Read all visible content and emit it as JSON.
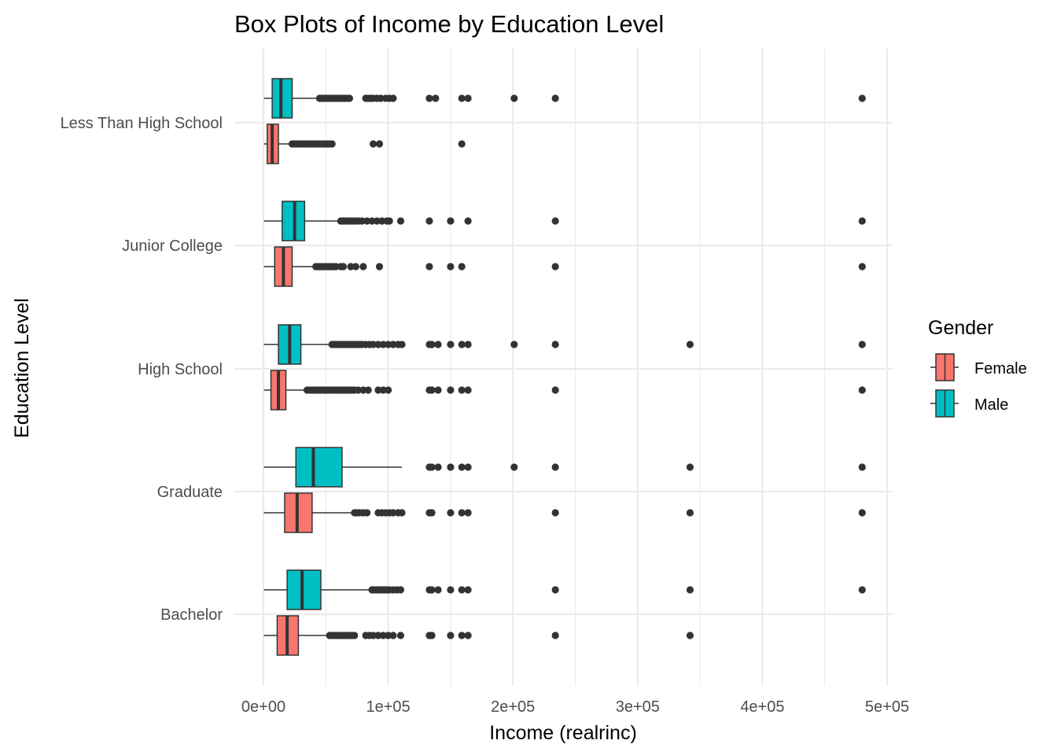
{
  "chart_data": {
    "type": "boxplot",
    "orientation": "horizontal",
    "title": "Box Plots of Income by Education Level",
    "xlabel": "Income (realrinc)",
    "ylabel": "Education Level",
    "xlim": [
      -10000,
      505000
    ],
    "x_ticks": [
      0,
      100000,
      200000,
      300000,
      400000,
      500000
    ],
    "x_tick_labels": [
      "0e+00",
      "1e+05",
      "2e+05",
      "3e+05",
      "4e+05",
      "5e+05"
    ],
    "categories": [
      "Bachelor",
      "Graduate",
      "High School",
      "Junior College",
      "Less Than High School"
    ],
    "grid": true,
    "legend": {
      "title": "Gender",
      "position": "right",
      "entries": [
        {
          "label": "Female",
          "color": "#F8766D"
        },
        {
          "label": "Male",
          "color": "#00BFC4"
        }
      ]
    },
    "series": [
      {
        "name": "Female",
        "color": "#F8766D",
        "boxes": [
          {
            "category": "Bachelor",
            "whisker_low": 300,
            "q1": 11000,
            "median": 19000,
            "q3": 28000,
            "whisker_high": 52000,
            "outliers": [
              53000,
              55000,
              57000,
              59000,
              61000,
              63000,
              65000,
              67000,
              69000,
              71000,
              73000,
              82000,
              85000,
              88000,
              92000,
              96000,
              100000,
              104000,
              110000,
              133000,
              135000,
              150000,
              159000,
              164000,
              234000,
              342000
            ]
          },
          {
            "category": "Graduate",
            "whisker_low": 300,
            "q1": 17000,
            "median": 27000,
            "q3": 39000,
            "whisker_high": 72000,
            "outliers": [
              73000,
              75000,
              77000,
              80000,
              83000,
              92000,
              95000,
              98000,
              101000,
              104000,
              108000,
              111000,
              133000,
              135000,
              150000,
              159000,
              164000,
              234000,
              342000,
              480000
            ]
          },
          {
            "category": "High School",
            "whisker_low": 300,
            "q1": 6000,
            "median": 12000,
            "q3": 18000,
            "whisker_high": 33000,
            "outliers": [
              35000,
              37000,
              39000,
              41000,
              43000,
              45000,
              47000,
              49000,
              51000,
              53000,
              55000,
              57000,
              59000,
              61000,
              63000,
              65000,
              67000,
              69000,
              71000,
              73000,
              76000,
              80000,
              84000,
              92000,
              96000,
              100000,
              133000,
              135000,
              140000,
              150000,
              159000,
              164000,
              234000,
              480000
            ]
          },
          {
            "category": "Junior College",
            "whisker_low": 300,
            "q1": 9000,
            "median": 16000,
            "q3": 23000,
            "whisker_high": 41000,
            "outliers": [
              42000,
              44000,
              46000,
              48000,
              50000,
              52000,
              54000,
              56000,
              58000,
              62000,
              64000,
              70000,
              74000,
              80000,
              93000,
              133000,
              150000,
              159000,
              234000,
              480000
            ]
          },
          {
            "category": "Less Than High School",
            "whisker_low": 300,
            "q1": 3000,
            "median": 7000,
            "q3": 12000,
            "whisker_high": 22000,
            "outliers": [
              23000,
              25000,
              27000,
              29000,
              31000,
              33000,
              35000,
              37000,
              39000,
              41000,
              43000,
              45000,
              47000,
              49000,
              51000,
              53000,
              55000,
              88000,
              93000,
              159000
            ]
          }
        ]
      },
      {
        "name": "Male",
        "color": "#00BFC4",
        "boxes": [
          {
            "category": "Bachelor",
            "whisker_low": 300,
            "q1": 19000,
            "median": 31000,
            "q3": 46000,
            "whisker_high": 85000,
            "outliers": [
              87000,
              89000,
              91000,
              93000,
              95000,
              97000,
              99000,
              101000,
              104000,
              107000,
              110000,
              133000,
              135000,
              140000,
              150000,
              159000,
              164000,
              234000,
              342000,
              480000
            ]
          },
          {
            "category": "Graduate",
            "whisker_low": 300,
            "q1": 26000,
            "median": 40000,
            "q3": 63000,
            "whisker_high": 111000,
            "outliers": [
              133000,
              135000,
              140000,
              150000,
              159000,
              164000,
              201000,
              234000,
              342000,
              480000
            ]
          },
          {
            "category": "High School",
            "whisker_low": 300,
            "q1": 12000,
            "median": 21000,
            "q3": 30000,
            "whisker_high": 54000,
            "outliers": [
              55000,
              57000,
              59000,
              61000,
              63000,
              65000,
              67000,
              69000,
              71000,
              73000,
              75000,
              77000,
              79000,
              82000,
              85000,
              88000,
              92000,
              96000,
              100000,
              104000,
              108000,
              111000,
              133000,
              135000,
              140000,
              150000,
              159000,
              164000,
              201000,
              234000,
              342000,
              480000
            ]
          },
          {
            "category": "Junior College",
            "whisker_low": 300,
            "q1": 15000,
            "median": 25000,
            "q3": 33000,
            "whisker_high": 61000,
            "outliers": [
              62000,
              64000,
              66000,
              68000,
              70000,
              72000,
              74000,
              76000,
              79000,
              83000,
              87000,
              91000,
              95000,
              99000,
              101000,
              110000,
              133000,
              150000,
              164000,
              234000,
              480000
            ]
          },
          {
            "category": "Less Than High School",
            "whisker_low": 300,
            "q1": 7000,
            "median": 14000,
            "q3": 23000,
            "whisker_high": 44000,
            "outliers": [
              45000,
              47000,
              49000,
              51000,
              53000,
              55000,
              57000,
              59000,
              61000,
              63000,
              65000,
              67000,
              69000,
              82000,
              84000,
              86000,
              88000,
              91000,
              94000,
              98000,
              101000,
              104000,
              133000,
              138000,
              159000,
              164000,
              201000,
              234000,
              480000
            ]
          }
        ]
      }
    ]
  }
}
